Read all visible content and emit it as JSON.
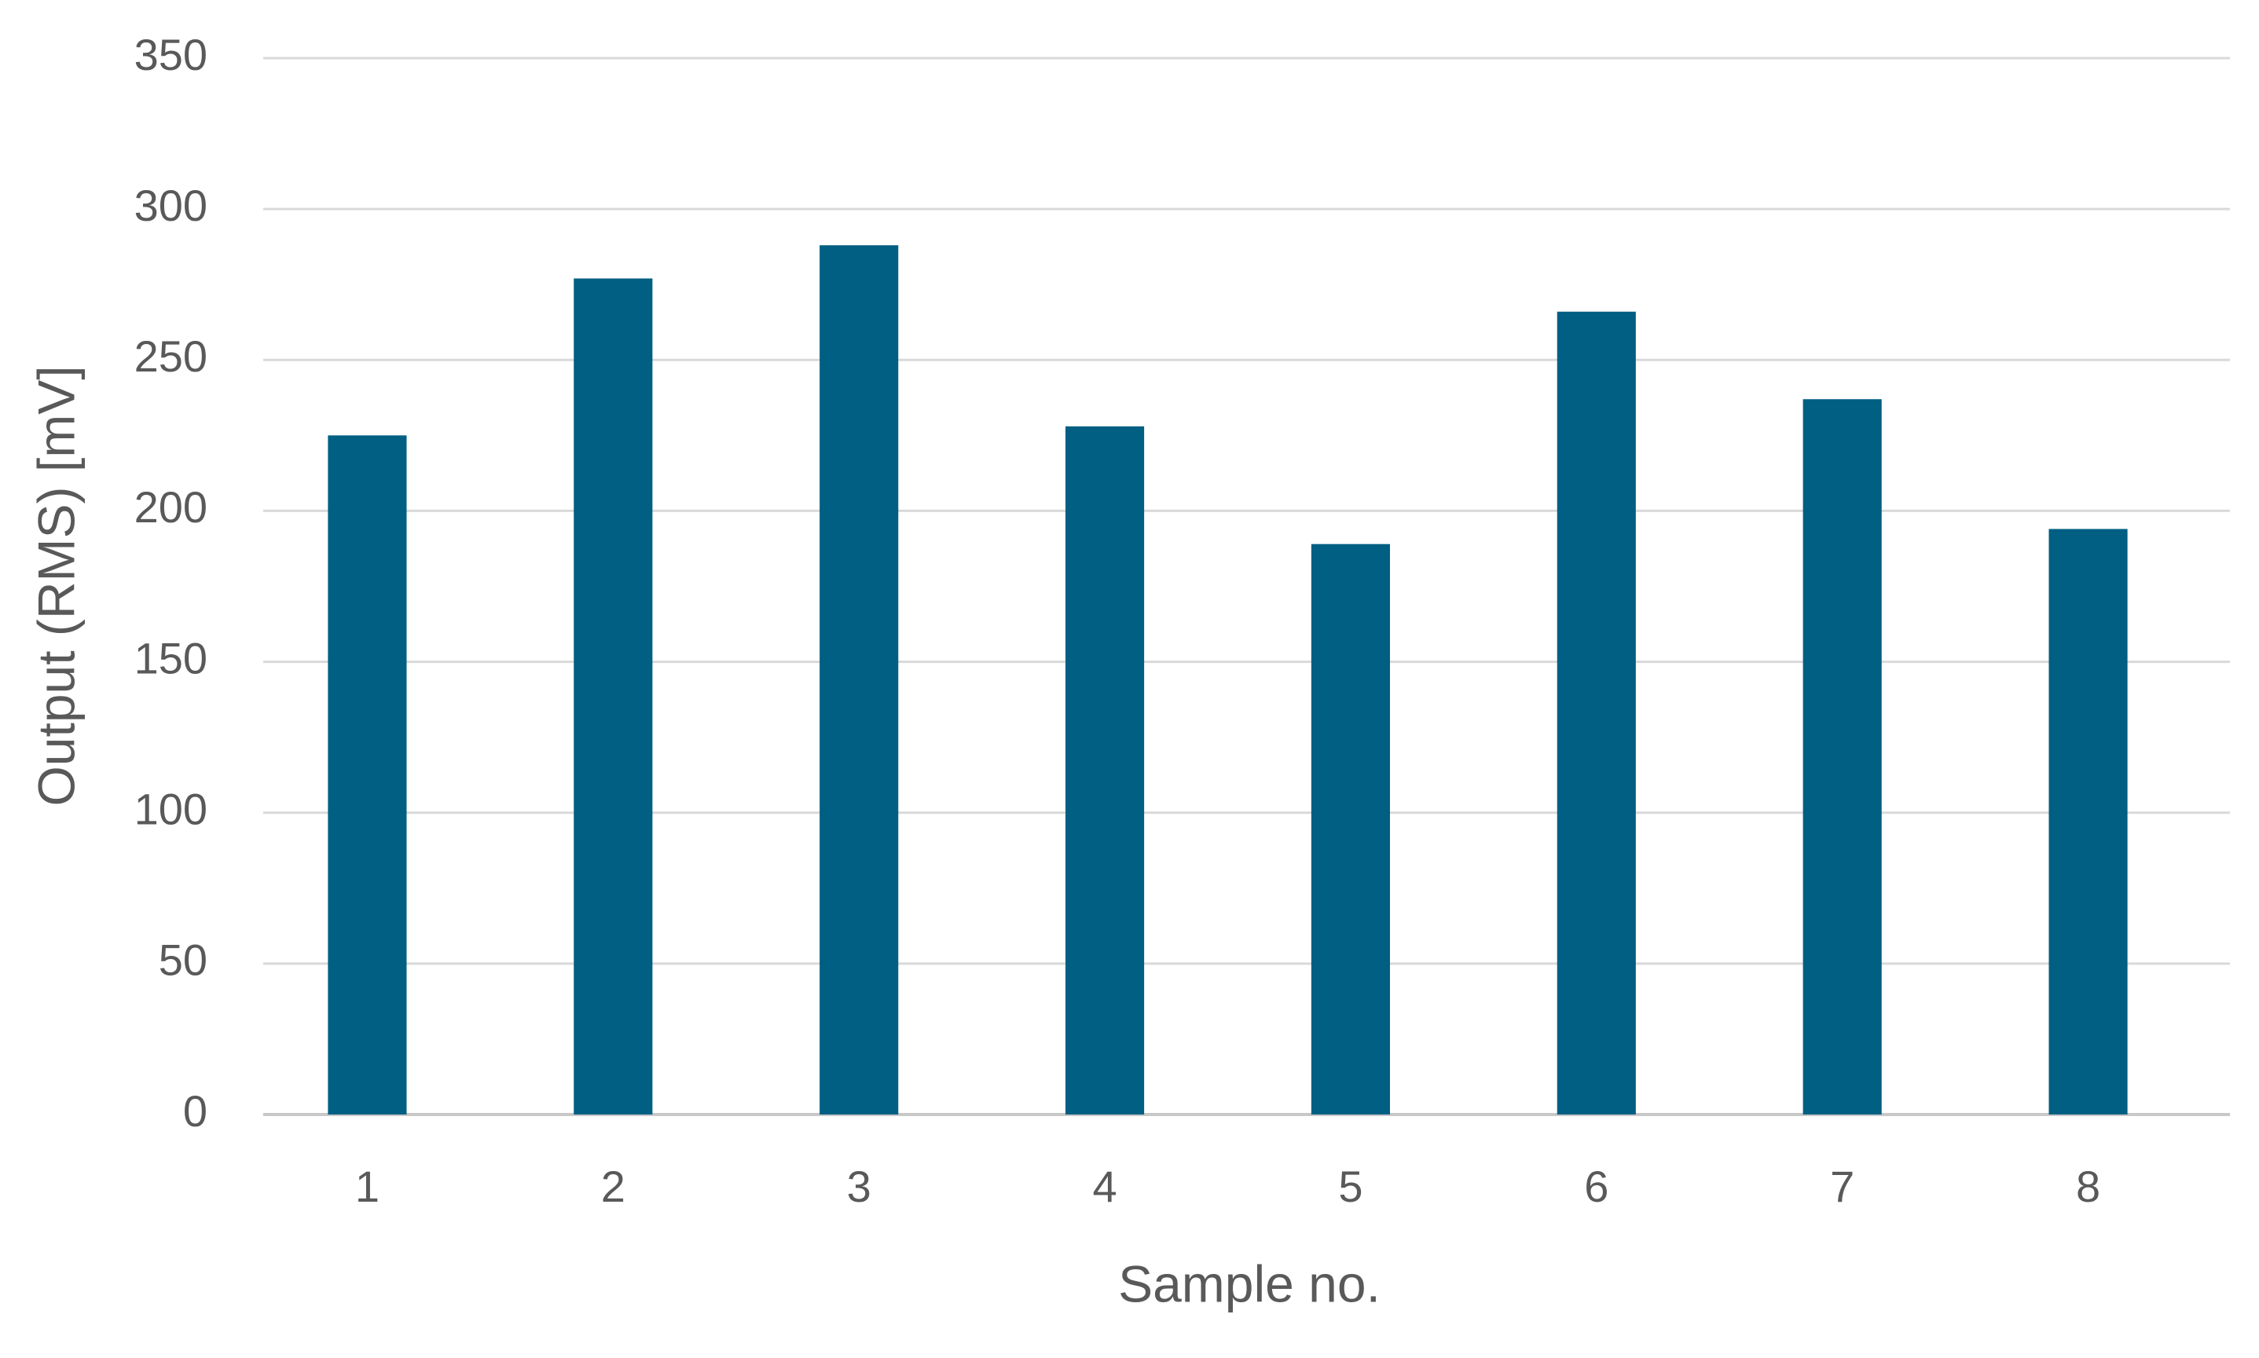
{
  "chart_data": {
    "type": "bar",
    "x_label": "Sample no.",
    "y_label": "Output (RMS) [mV]",
    "categories": [
      "1",
      "2",
      "3",
      "4",
      "5",
      "6",
      "7",
      "8"
    ],
    "values": [
      225,
      277,
      288,
      228,
      189,
      266,
      237,
      194
    ],
    "color": "#005f83",
    "ylim": [
      0,
      350
    ],
    "yticks": [
      0,
      50,
      100,
      150,
      200,
      250,
      300,
      350
    ],
    "grid": true
  }
}
